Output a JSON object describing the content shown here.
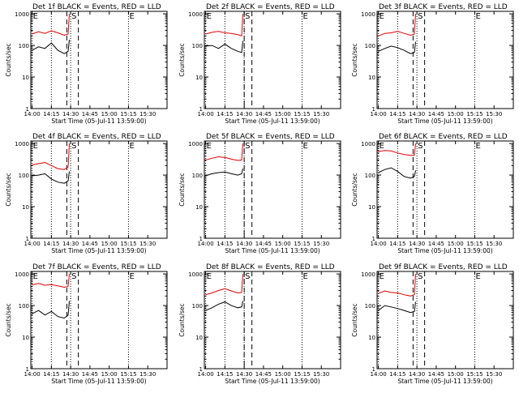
{
  "chart_data": [
    {
      "type": "line",
      "title": "Det 1f BLACK = Events, RED = LLD",
      "xlabel": "Start Time (05-Jul-11 13:59:00)",
      "ylabel": "Counts/sec",
      "yscale": "log",
      "ylim": [
        1,
        1200
      ],
      "xlim": [
        "13:59",
        "15:45"
      ],
      "x_ticks": [
        "14:00",
        "14:15",
        "14:30",
        "14:45",
        "15:00",
        "15:15",
        "15:30"
      ],
      "y_ticks": [
        "1",
        "10",
        "100",
        "1000"
      ],
      "markers": [
        {
          "label": "E",
          "time": "14:00"
        },
        {
          "label": "S",
          "time": "14:30"
        },
        {
          "label": "E",
          "time": "15:15"
        }
      ],
      "dotted_lines": [
        "14:00",
        "14:15",
        "14:30",
        "15:15"
      ],
      "dashed_lines": [
        "14:27",
        "14:36"
      ],
      "series": [
        {
          "name": "LLD",
          "color": "#e00000",
          "x": [
            "14:00",
            "14:05",
            "14:10",
            "14:15",
            "14:20",
            "14:25",
            "14:28",
            "14:29"
          ],
          "y": [
            230,
            270,
            240,
            290,
            250,
            210,
            230,
            1000
          ]
        },
        {
          "name": "Events",
          "color": "#000000",
          "x": [
            "14:00",
            "14:05",
            "14:10",
            "14:15",
            "14:20",
            "14:25",
            "14:28",
            "14:29"
          ],
          "y": [
            70,
            90,
            80,
            120,
            70,
            55,
            65,
            150
          ]
        }
      ]
    },
    {
      "type": "line",
      "title": "Det 2f BLACK = Events, RED = LLD",
      "xlabel": "Start Time (05-Jul-11 13:59:00)",
      "ylabel": "Counts/sec",
      "yscale": "log",
      "ylim": [
        1,
        1200
      ],
      "xlim": [
        "13:59",
        "15:45"
      ],
      "x_ticks": [
        "14:00",
        "14:15",
        "14:30",
        "14:45",
        "15:00",
        "15:15",
        "15:30"
      ],
      "y_ticks": [
        "1",
        "10",
        "100",
        "1000"
      ],
      "markers": [
        {
          "label": "E",
          "time": "14:00"
        },
        {
          "label": "S",
          "time": "14:30"
        },
        {
          "label": "E",
          "time": "15:15"
        }
      ],
      "dotted_lines": [
        "14:00",
        "14:15",
        "14:30",
        "15:15"
      ],
      "dashed_lines": [
        "14:30",
        "14:36"
      ],
      "series": [
        {
          "name": "LLD",
          "color": "#e00000",
          "x": [
            "14:00",
            "14:05",
            "14:10",
            "14:15",
            "14:20",
            "14:25",
            "14:28",
            "14:29"
          ],
          "y": [
            230,
            260,
            280,
            250,
            240,
            220,
            200,
            1000
          ]
        },
        {
          "name": "Events",
          "color": "#000000",
          "x": [
            "14:00",
            "14:05",
            "14:10",
            "14:15",
            "14:20",
            "14:25",
            "14:28",
            "14:29"
          ],
          "y": [
            95,
            100,
            80,
            110,
            80,
            65,
            60,
            140
          ]
        }
      ]
    },
    {
      "type": "line",
      "title": "Det 3f BLACK = Events, RED = LLD",
      "xlabel": "Start Time (05-Jul-11 13:59:00)",
      "ylabel": "Counts/sec",
      "yscale": "log",
      "ylim": [
        1,
        1200
      ],
      "xlim": [
        "13:59",
        "15:45"
      ],
      "x_ticks": [
        "14:00",
        "14:15",
        "14:30",
        "14:45",
        "15:00",
        "15:15",
        "15:30"
      ],
      "y_ticks": [
        "1",
        "10",
        "100",
        "1000"
      ],
      "markers": [
        {
          "label": "E",
          "time": "14:00"
        },
        {
          "label": "S",
          "time": "14:30"
        },
        {
          "label": "E",
          "time": "15:15"
        }
      ],
      "dotted_lines": [
        "14:00",
        "14:15",
        "14:30",
        "15:15"
      ],
      "dashed_lines": [
        "14:27",
        "14:36"
      ],
      "series": [
        {
          "name": "LLD",
          "color": "#e00000",
          "x": [
            "14:00",
            "14:05",
            "14:10",
            "14:15",
            "14:20",
            "14:25",
            "14:28",
            "14:29"
          ],
          "y": [
            200,
            240,
            250,
            280,
            240,
            210,
            230,
            1000
          ]
        },
        {
          "name": "Events",
          "color": "#000000",
          "x": [
            "14:00",
            "14:05",
            "14:10",
            "14:15",
            "14:20",
            "14:25",
            "14:28",
            "14:29"
          ],
          "y": [
            65,
            80,
            95,
            85,
            70,
            55,
            60,
            130
          ]
        }
      ]
    },
    {
      "type": "line",
      "title": "Det 4f BLACK = Events, RED = LLD",
      "xlabel": "Start Time (05-Jul-11 13:59:00)",
      "ylabel": "Counts/sec",
      "yscale": "log",
      "ylim": [
        1,
        1200
      ],
      "xlim": [
        "13:59",
        "15:45"
      ],
      "x_ticks": [
        "14:00",
        "14:15",
        "14:30",
        "14:45",
        "15:00",
        "15:15",
        "15:30"
      ],
      "y_ticks": [
        "1",
        "10",
        "100",
        "1000"
      ],
      "markers": [
        {
          "label": "E",
          "time": "14:00"
        },
        {
          "label": "S",
          "time": "14:30"
        },
        {
          "label": "E",
          "time": "15:15"
        }
      ],
      "dotted_lines": [
        "14:00",
        "14:15",
        "14:30",
        "15:15"
      ],
      "dashed_lines": [
        "14:27",
        "14:36"
      ],
      "series": [
        {
          "name": "LLD",
          "color": "#e00000",
          "x": [
            "14:00",
            "14:05",
            "14:10",
            "14:15",
            "14:20",
            "14:25",
            "14:28",
            "14:29"
          ],
          "y": [
            210,
            230,
            250,
            200,
            160,
            150,
            180,
            1000
          ]
        },
        {
          "name": "Events",
          "color": "#000000",
          "x": [
            "14:00",
            "14:05",
            "14:10",
            "14:15",
            "14:20",
            "14:25",
            "14:28",
            "14:29"
          ],
          "y": [
            95,
            100,
            110,
            75,
            60,
            55,
            65,
            130
          ]
        }
      ]
    },
    {
      "type": "line",
      "title": "Det 5f BLACK = Events, RED = LLD",
      "xlabel": "Start Time (05-Jul-11 13:59:00)",
      "ylabel": "Counts/sec",
      "yscale": "log",
      "ylim": [
        1,
        1200
      ],
      "xlim": [
        "13:59",
        "15:45"
      ],
      "x_ticks": [
        "14:00",
        "14:15",
        "14:30",
        "14:45",
        "15:00",
        "15:15",
        "15:30"
      ],
      "y_ticks": [
        "1",
        "10",
        "100",
        "1000"
      ],
      "markers": [
        {
          "label": "E",
          "time": "14:00"
        },
        {
          "label": "S",
          "time": "14:30"
        },
        {
          "label": "E",
          "time": "15:15"
        }
      ],
      "dotted_lines": [
        "14:00",
        "14:15",
        "14:30",
        "15:15"
      ],
      "dashed_lines": [
        "14:30",
        "14:36"
      ],
      "series": [
        {
          "name": "LLD",
          "color": "#e00000",
          "x": [
            "14:00",
            "14:05",
            "14:10",
            "14:15",
            "14:20",
            "14:25",
            "14:28",
            "14:29"
          ],
          "y": [
            300,
            340,
            380,
            360,
            320,
            290,
            300,
            1000
          ]
        },
        {
          "name": "Events",
          "color": "#000000",
          "x": [
            "14:00",
            "14:05",
            "14:10",
            "14:15",
            "14:20",
            "14:25",
            "14:28",
            "14:29"
          ],
          "y": [
            95,
            110,
            120,
            125,
            110,
            100,
            110,
            160
          ]
        }
      ]
    },
    {
      "type": "line",
      "title": "Det 6f BLACK = Events, RED = LLD",
      "xlabel": "Start Time (05-Jul-11 13:59:00)",
      "ylabel": "Counts/sec",
      "yscale": "log",
      "ylim": [
        1,
        1200
      ],
      "xlim": [
        "13:59",
        "15:45"
      ],
      "x_ticks": [
        "14:00",
        "14:15",
        "14:30",
        "14:45",
        "15:00",
        "15:15",
        "15:30"
      ],
      "y_ticks": [
        "1",
        "10",
        "100",
        "1000"
      ],
      "markers": [
        {
          "label": "E",
          "time": "14:00"
        },
        {
          "label": "S",
          "time": "14:30"
        },
        {
          "label": "E",
          "time": "15:15"
        }
      ],
      "dotted_lines": [
        "14:00",
        "14:15",
        "14:30",
        "15:15"
      ],
      "dashed_lines": [
        "14:27",
        "14:36"
      ],
      "series": [
        {
          "name": "LLD",
          "color": "#e00000",
          "x": [
            "14:00",
            "14:05",
            "14:10",
            "14:15",
            "14:20",
            "14:25",
            "14:28",
            "14:29"
          ],
          "y": [
            560,
            600,
            580,
            500,
            450,
            420,
            430,
            1000
          ]
        },
        {
          "name": "Events",
          "color": "#000000",
          "x": [
            "14:00",
            "14:05",
            "14:10",
            "14:15",
            "14:20",
            "14:25",
            "14:28",
            "14:29"
          ],
          "y": [
            120,
            150,
            170,
            130,
            90,
            80,
            90,
            140
          ]
        }
      ]
    },
    {
      "type": "line",
      "title": "Det 7f BLACK = Events, RED = LLD",
      "xlabel": "Start Time (05-Jul-11 13:59:00)",
      "ylabel": "Counts/sec",
      "yscale": "log",
      "ylim": [
        1,
        1200
      ],
      "xlim": [
        "13:59",
        "15:45"
      ],
      "x_ticks": [
        "14:00",
        "14:15",
        "14:30",
        "14:45",
        "15:00",
        "15:15",
        "15:30"
      ],
      "y_ticks": [
        "1",
        "10",
        "100",
        "1000"
      ],
      "markers": [
        {
          "label": "E",
          "time": "14:00"
        },
        {
          "label": "S",
          "time": "14:30"
        },
        {
          "label": "E",
          "time": "15:15"
        }
      ],
      "dotted_lines": [
        "14:00",
        "14:15",
        "14:30",
        "15:15"
      ],
      "dashed_lines": [
        "14:27",
        "14:36"
      ],
      "series": [
        {
          "name": "LLD",
          "color": "#e00000",
          "x": [
            "14:00",
            "14:05",
            "14:10",
            "14:15",
            "14:20",
            "14:25",
            "14:28",
            "14:29"
          ],
          "y": [
            450,
            500,
            440,
            460,
            420,
            380,
            400,
            1000
          ]
        },
        {
          "name": "Events",
          "color": "#000000",
          "x": [
            "14:00",
            "14:05",
            "14:10",
            "14:15",
            "14:20",
            "14:25",
            "14:28",
            "14:29"
          ],
          "y": [
            55,
            70,
            50,
            65,
            45,
            40,
            50,
            140
          ]
        }
      ]
    },
    {
      "type": "line",
      "title": "Det 8f BLACK = Events, RED = LLD",
      "xlabel": "Start Time (05-Jul-11 13:59:00)",
      "ylabel": "Counts/sec",
      "yscale": "log",
      "ylim": [
        1,
        1200
      ],
      "xlim": [
        "13:59",
        "15:45"
      ],
      "x_ticks": [
        "14:00",
        "14:15",
        "14:30",
        "14:45",
        "15:00",
        "15:15",
        "15:30"
      ],
      "y_ticks": [
        "1",
        "10",
        "100",
        "1000"
      ],
      "markers": [
        {
          "label": "E",
          "time": "14:00"
        },
        {
          "label": "S",
          "time": "14:30"
        },
        {
          "label": "E",
          "time": "15:15"
        }
      ],
      "dotted_lines": [
        "14:00",
        "14:15",
        "14:30",
        "15:15"
      ],
      "dashed_lines": [
        "14:30",
        "14:36"
      ],
      "series": [
        {
          "name": "LLD",
          "color": "#e00000",
          "x": [
            "14:00",
            "14:05",
            "14:10",
            "14:15",
            "14:20",
            "14:25",
            "14:28",
            "14:29"
          ],
          "y": [
            220,
            250,
            300,
            340,
            290,
            250,
            260,
            1000
          ]
        },
        {
          "name": "Events",
          "color": "#000000",
          "x": [
            "14:00",
            "14:05",
            "14:10",
            "14:15",
            "14:20",
            "14:25",
            "14:28",
            "14:29"
          ],
          "y": [
            70,
            85,
            110,
            130,
            100,
            85,
            90,
            140
          ]
        }
      ]
    },
    {
      "type": "line",
      "title": "Det 9f BLACK = Events, RED = LLD",
      "xlabel": "Start Time (05-Jul-11 13:59:00)",
      "ylabel": "Counts/sec",
      "yscale": "log",
      "ylim": [
        1,
        1200
      ],
      "xlim": [
        "13:59",
        "15:45"
      ],
      "x_ticks": [
        "14:00",
        "14:15",
        "14:30",
        "14:45",
        "15:00",
        "15:15",
        "15:30"
      ],
      "y_ticks": [
        "1",
        "10",
        "100",
        "1000"
      ],
      "markers": [
        {
          "label": "E",
          "time": "14:00"
        },
        {
          "label": "S",
          "time": "14:30"
        },
        {
          "label": "E",
          "time": "15:15"
        }
      ],
      "dotted_lines": [
        "14:00",
        "14:15",
        "14:30",
        "15:15"
      ],
      "dashed_lines": [
        "14:27",
        "14:36"
      ],
      "series": [
        {
          "name": "LLD",
          "color": "#e00000",
          "x": [
            "14:00",
            "14:05",
            "14:10",
            "14:15",
            "14:20",
            "14:25",
            "14:28",
            "14:29"
          ],
          "y": [
            240,
            290,
            260,
            250,
            220,
            200,
            220,
            1000
          ]
        },
        {
          "name": "Events",
          "color": "#000000",
          "x": [
            "14:00",
            "14:05",
            "14:10",
            "14:15",
            "14:20",
            "14:25",
            "14:28",
            "14:29"
          ],
          "y": [
            70,
            100,
            90,
            80,
            70,
            60,
            65,
            130
          ]
        }
      ]
    }
  ]
}
